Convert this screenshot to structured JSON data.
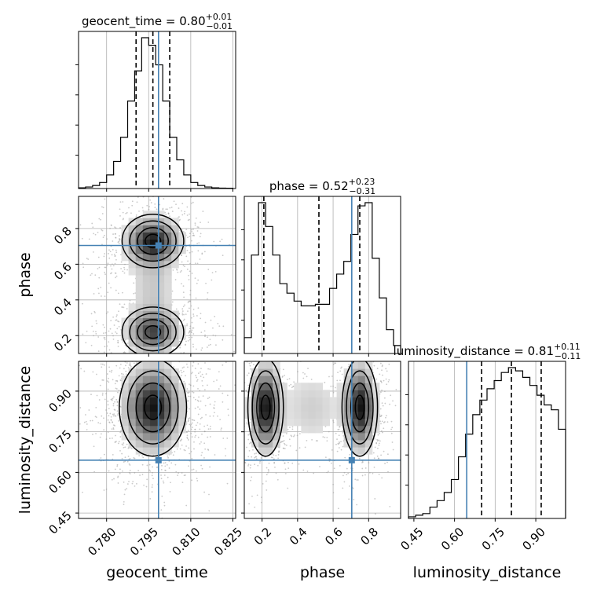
{
  "chart_data": {
    "type": "corner",
    "parameters": [
      "geocent_time",
      "phase",
      "luminosity_distance"
    ],
    "titles": [
      {
        "param": "geocent_time",
        "text": "geocent_time = 0.80",
        "plus": "+0.01",
        "minus": "−0.01"
      },
      {
        "param": "phase",
        "text": "phase = 0.52",
        "plus": "+0.23",
        "minus": "−0.31"
      },
      {
        "param": "luminosity_distance",
        "text": "luminosity_distance = 0.81",
        "plus": "+0.11",
        "minus": "−0.11"
      }
    ],
    "truths": {
      "geocent_time": 0.7985,
      "phase": 0.705,
      "luminosity_distance": 0.645
    },
    "quantiles": {
      "geocent_time": [
        0.7905,
        0.7965,
        0.8025
      ],
      "phase": [
        0.21,
        0.52,
        0.75
      ],
      "luminosity_distance": [
        0.7,
        0.81,
        0.92
      ]
    },
    "ranges": {
      "geocent_time": [
        0.77,
        0.826
      ],
      "phase": [
        0.1,
        0.98
      ],
      "luminosity_distance": [
        0.43,
        1.01
      ]
    },
    "ticks": {
      "geocent_time": {
        "values": [
          0.78,
          0.795,
          0.81,
          0.825
        ],
        "labels": [
          "0.780",
          "0.795",
          "0.810",
          "0.825"
        ]
      },
      "phase_x": {
        "values": [
          0.2,
          0.4,
          0.6,
          0.8
        ],
        "labels": [
          "0.2",
          "0.4",
          "0.6",
          "0.8"
        ]
      },
      "phase_y": {
        "values": [
          0.2,
          0.4,
          0.6,
          0.8
        ],
        "labels": [
          "0.2",
          "0.4",
          "0.6",
          "0.8"
        ]
      },
      "luminosity_distance": {
        "values": [
          0.45,
          0.6,
          0.75,
          0.9
        ],
        "labels": [
          "0.45",
          "0.60",
          "0.75",
          "0.90"
        ]
      }
    },
    "histograms": {
      "geocent_time": {
        "edges": [
          0.77,
          0.7725,
          0.775,
          0.7775,
          0.78,
          0.7825,
          0.785,
          0.7875,
          0.79,
          0.7925,
          0.795,
          0.7975,
          0.8,
          0.8025,
          0.805,
          0.8075,
          0.81,
          0.8125,
          0.815,
          0.8175,
          0.82,
          0.8225,
          0.825
        ],
        "counts": [
          0.5,
          1,
          2,
          4,
          9,
          18,
          34,
          58,
          78,
          100,
          95,
          82,
          58,
          34,
          19,
          9,
          4,
          2,
          1,
          0.5,
          0.3,
          0.2
        ]
      },
      "phase": {
        "edges": [
          0.1,
          0.14,
          0.18,
          0.22,
          0.26,
          0.3,
          0.34,
          0.38,
          0.42,
          0.46,
          0.5,
          0.54,
          0.58,
          0.62,
          0.66,
          0.7,
          0.74,
          0.78,
          0.82,
          0.86,
          0.9,
          0.94,
          0.98
        ],
        "counts": [
          10,
          62,
          95,
          80,
          62,
          44,
          38,
          33,
          30,
          30,
          31,
          31,
          41,
          50,
          58,
          75,
          93,
          95,
          60,
          35,
          15,
          5
        ]
      },
      "luminosity_distance": {
        "edges": [
          0.43,
          0.4564,
          0.4827,
          0.5091,
          0.5355,
          0.5618,
          0.5882,
          0.6145,
          0.6409,
          0.6673,
          0.6936,
          0.72,
          0.7464,
          0.7727,
          0.7991,
          0.8255,
          0.8518,
          0.8782,
          0.9045,
          0.9309,
          0.9573,
          0.9836,
          1.01
        ],
        "counts": [
          1,
          2,
          3,
          7,
          11,
          16,
          24,
          38,
          52,
          64,
          73,
          80,
          85,
          90,
          93,
          91,
          87,
          82,
          76,
          70,
          67,
          55
        ]
      }
    },
    "density_blobs": {
      "phase_vs_geocent_time": [
        {
          "x": 0.7965,
          "y": 0.73,
          "sx": 0.0055,
          "sy": 0.075,
          "w": 1.0
        },
        {
          "x": 0.7965,
          "y": 0.22,
          "sx": 0.0055,
          "sy": 0.07,
          "w": 0.8
        },
        {
          "x": 0.7965,
          "y": 0.47,
          "sx": 0.006,
          "sy": 0.18,
          "w": 0.25
        }
      ],
      "luminosity_distance_vs_geocent_time": [
        {
          "x": 0.7965,
          "y": 0.84,
          "sx": 0.006,
          "sy": 0.09,
          "w": 1.0
        }
      ],
      "luminosity_distance_vs_phase": [
        {
          "x": 0.22,
          "y": 0.84,
          "sx": 0.05,
          "sy": 0.09,
          "w": 1.0
        },
        {
          "x": 0.75,
          "y": 0.84,
          "sx": 0.05,
          "sy": 0.09,
          "w": 1.0
        },
        {
          "x": 0.48,
          "y": 0.84,
          "sx": 0.12,
          "sy": 0.1,
          "w": 0.2
        }
      ]
    },
    "colors": {
      "truth": "#4682b4",
      "hist": "#000000",
      "grid": "#b0b0b0",
      "scatter": "#9e9e9e"
    },
    "grid": true,
    "xlabels": [
      "geocent_time",
      "phase",
      "luminosity_distance"
    ],
    "ylabels": [
      "",
      "phase",
      "luminosity_distance"
    ]
  }
}
